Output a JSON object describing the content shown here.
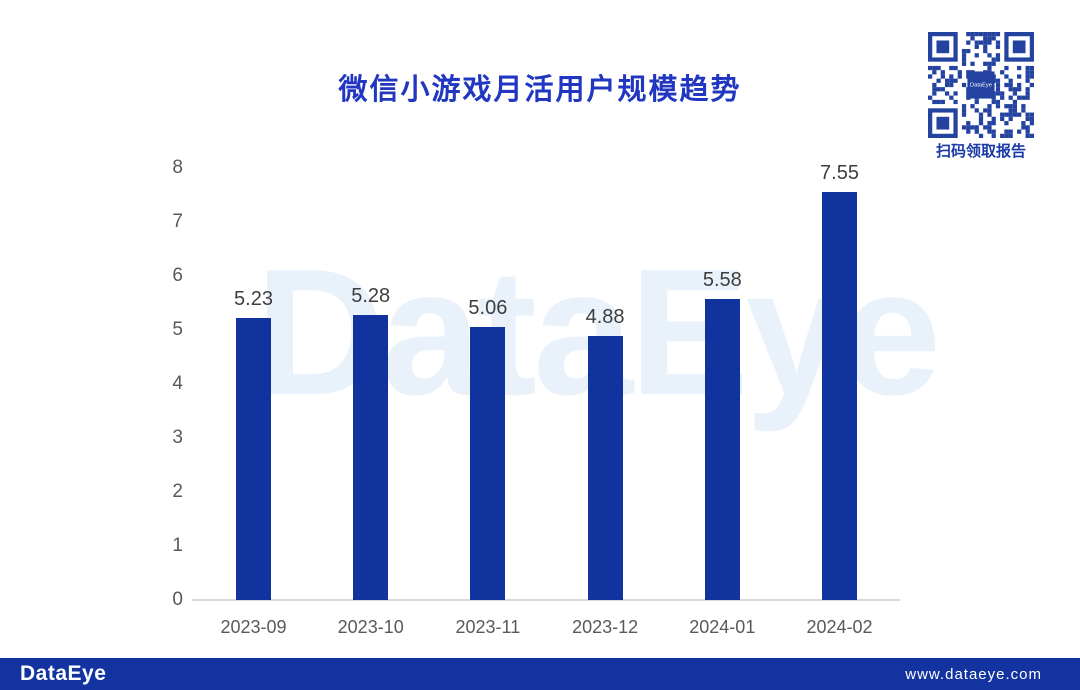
{
  "chart_data": {
    "type": "bar",
    "title": "微信小游戏月活用户规模趋势",
    "categories": [
      "2023-09",
      "2023-10",
      "2023-11",
      "2023-12",
      "2024-01",
      "2024-02"
    ],
    "values": [
      5.23,
      5.28,
      5.06,
      4.88,
      5.58,
      7.55
    ],
    "value_labels": [
      "5.23",
      "5.28",
      "5.06",
      "4.88",
      "5.58",
      "7.55"
    ],
    "ylim": [
      0,
      8
    ],
    "yticks": [
      0,
      1,
      2,
      3,
      4,
      5,
      6,
      7,
      8
    ],
    "grid": false,
    "legend": null,
    "bar_color": "#11339e",
    "title_color": "#2137c1",
    "axis_text_color": "#595959",
    "value_label_color": "#3e3e3e"
  },
  "qr": {
    "caption": "扫码领取报告",
    "center_label": "DataEye",
    "color": "#24429f",
    "caption_color": "#1b3aa6"
  },
  "watermark": {
    "text": "DataEye"
  },
  "footer": {
    "logo": "DataEye",
    "website": "www.dataeye.com",
    "bg": "#1233a0"
  }
}
